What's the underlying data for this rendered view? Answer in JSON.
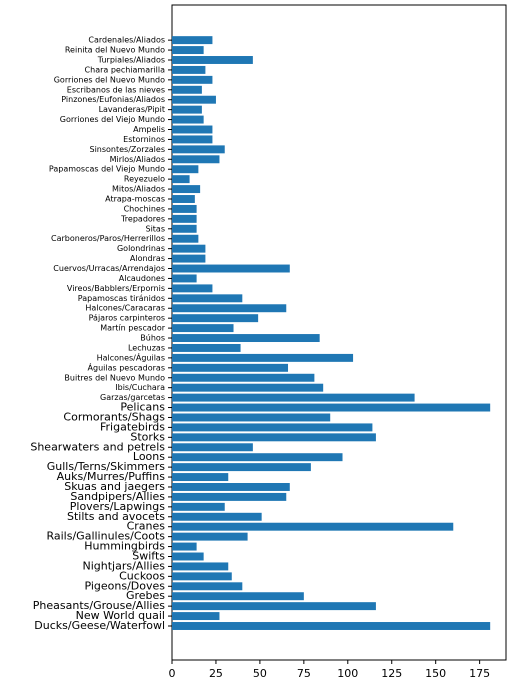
{
  "chart_data": {
    "type": "barh",
    "categories": [
      "Ducks/Geese/Waterfowl",
      "New World quail",
      "Pheasants/Grouse/Allies",
      "Grebes",
      "Pigeons/Doves",
      "Cuckoos",
      "Nightjars/Allies",
      "Swifts",
      "Hummingbirds",
      "Rails/Gallinules/Coots",
      "Cranes",
      "Stilts and avocets",
      "Plovers/Lapwings",
      "Sandpipers/Allies",
      "Skuas and jaegers",
      "Auks/Murres/Puffins",
      "Gulls/Terns/Skimmers",
      "Loons",
      "Shearwaters and petrels",
      "Storks",
      "Frigatebirds",
      "Cormorants/Shags",
      "Pelicans",
      "Garzas/garcetas",
      "Ibis/Cuchara",
      "Buitres del Nuevo Mundo",
      "Águilas pescadoras",
      "Halcones/Águilas",
      "Lechuzas",
      "Búhos",
      "Martín pescador",
      "Pájaros carpinteros",
      "Halcones/Caracaras",
      "Papamoscas tiránidos",
      "Vireos/Babblers/Erpornis",
      "Alcaudones",
      "Cuervos/Urracas/Arrendajos",
      "Alondras",
      "Golondrinas",
      "Carboneros/Paros/Herrerillos",
      "Sitas",
      "Trepadores",
      "Chochines",
      "Atrapa-moscas",
      "Mitos/Aliados",
      "Reyezuelo",
      "Papamoscas del Viejo Mundo",
      "Mirlos/Aliados",
      "Sinsontes/Zorzales",
      "Estorninos",
      "Ampelis",
      "Gorriones del Viejo Mundo",
      "Lavanderas/Pipit",
      "Pinzones/Eufonias/Aliados",
      "Escribanos de las nieves",
      "Gorriones del Nuevo Mundo",
      "Chara pechiamarilla",
      "Turpiales/Aliados",
      "Reinita del Nuevo Mundo",
      "Cardenales/Aliados"
    ],
    "values": [
      181,
      27,
      116,
      75,
      40,
      34,
      32,
      18,
      14,
      43,
      160,
      51,
      30,
      65,
      67,
      32,
      79,
      97,
      46,
      116,
      114,
      90,
      181,
      138,
      86,
      81,
      66,
      103,
      39,
      84,
      35,
      49,
      65,
      40,
      23,
      14,
      67,
      19,
      19,
      15,
      14,
      14,
      14,
      13,
      16,
      10,
      15,
      27,
      30,
      23,
      23,
      18,
      17,
      25,
      17,
      23,
      19,
      46,
      18,
      23
    ],
    "color": "#1f77b4",
    "xlim": [
      0,
      190
    ],
    "xticks": [
      0,
      25,
      50,
      75,
      100,
      125,
      150,
      175
    ]
  }
}
